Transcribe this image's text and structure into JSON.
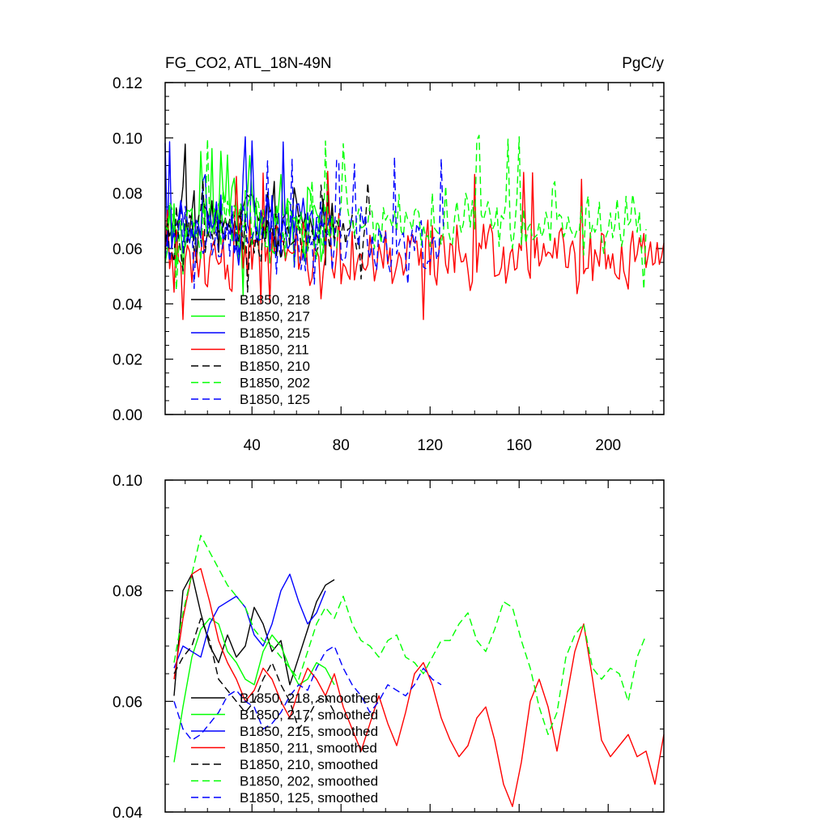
{
  "chart_data": [
    {
      "type": "line",
      "title": "FG_CO2, ATL_18N-49N",
      "units": "PgC/y",
      "xlabel": "",
      "ylabel": "",
      "xlim": [
        1,
        225
      ],
      "ylim": [
        0.0,
        0.12
      ],
      "xticks": [
        40,
        80,
        120,
        160,
        200
      ],
      "xtick_labels": [
        "40",
        "80",
        "120",
        "160",
        "200"
      ],
      "yticks": [
        0.0,
        0.02,
        0.04,
        0.06,
        0.08,
        0.1,
        0.12
      ],
      "ytick_labels": [
        "0.00",
        "0.02",
        "0.04",
        "0.06",
        "0.08",
        "0.10",
        "0.12"
      ],
      "legend_position": "lower-left",
      "series": [
        {
          "name": "B1850, 218",
          "color": "#000000",
          "dash": "solid",
          "x_start": 1,
          "x_end": 77,
          "mean": 0.07,
          "amplitude": 0.012,
          "peak": 0.101,
          "seed": 11
        },
        {
          "name": "B1850, 217",
          "color": "#00ff00",
          "dash": "solid",
          "x_start": 1,
          "x_end": 77,
          "mean": 0.07,
          "amplitude": 0.013,
          "peak": 0.097,
          "seed": 23
        },
        {
          "name": "B1850, 215",
          "color": "#0000ff",
          "dash": "solid",
          "x_start": 1,
          "x_end": 73,
          "mean": 0.068,
          "amplitude": 0.013,
          "peak": 0.101,
          "seed": 37
        },
        {
          "name": "B1850, 211",
          "color": "#ff0000",
          "dash": "solid",
          "x_start": 1,
          "x_end": 225,
          "mean": 0.058,
          "amplitude": 0.012,
          "peak": 0.088,
          "seed": 41
        },
        {
          "name": "B1850, 210",
          "color": "#000000",
          "dash": "dashed",
          "x_start": 1,
          "x_end": 93,
          "mean": 0.064,
          "amplitude": 0.011,
          "peak": 0.085,
          "seed": 53
        },
        {
          "name": "B1850, 202",
          "color": "#00ff00",
          "dash": "dashed",
          "x_start": 1,
          "x_end": 217,
          "mean": 0.069,
          "amplitude": 0.011,
          "peak": 0.101,
          "seed": 67
        },
        {
          "name": "B1850, 125",
          "color": "#0000ff",
          "dash": "dashed",
          "x_start": 1,
          "x_end": 126,
          "mean": 0.062,
          "amplitude": 0.012,
          "peak": 0.094,
          "seed": 79
        }
      ]
    },
    {
      "type": "line",
      "title": "",
      "units": "",
      "xlabel": "",
      "ylabel": "",
      "xlim": [
        1,
        225
      ],
      "ylim": [
        0.04,
        0.1
      ],
      "xticks": [
        40,
        80,
        120,
        160,
        200
      ],
      "xtick_labels": [],
      "yticks": [
        0.04,
        0.06,
        0.08,
        0.1
      ],
      "ytick_labels": [
        "0.04",
        "0.06",
        "0.08",
        "0.10"
      ],
      "legend_position": "lower-left",
      "series": [
        {
          "name": "B1850, 218, smoothed",
          "color": "#000000",
          "dash": "solid",
          "x": [
            5,
            9,
            13,
            17,
            21,
            25,
            29,
            33,
            37,
            41,
            45,
            49,
            53,
            57,
            61,
            65,
            69,
            73,
            77
          ],
          "y": [
            0.061,
            0.08,
            0.083,
            0.076,
            0.07,
            0.067,
            0.072,
            0.068,
            0.07,
            0.077,
            0.074,
            0.069,
            0.071,
            0.063,
            0.068,
            0.073,
            0.078,
            0.081,
            0.082
          ]
        },
        {
          "name": "B1850, 217, smoothed",
          "color": "#00ff00",
          "dash": "solid",
          "x": [
            5,
            9,
            13,
            17,
            21,
            25,
            29,
            33,
            37,
            41,
            45,
            49,
            53,
            57,
            61,
            65,
            69,
            73,
            77
          ],
          "y": [
            0.049,
            0.059,
            0.068,
            0.073,
            0.075,
            0.074,
            0.069,
            0.067,
            0.064,
            0.063,
            0.069,
            0.072,
            0.07,
            0.066,
            0.063,
            0.064,
            0.067,
            0.066,
            0.063
          ]
        },
        {
          "name": "B1850, 215, smoothed",
          "color": "#0000ff",
          "dash": "solid",
          "x": [
            5,
            9,
            13,
            17,
            21,
            25,
            29,
            33,
            37,
            41,
            45,
            49,
            53,
            57,
            61,
            65,
            69,
            73
          ],
          "y": [
            0.066,
            0.07,
            0.069,
            0.068,
            0.074,
            0.077,
            0.078,
            0.079,
            0.077,
            0.072,
            0.07,
            0.074,
            0.08,
            0.083,
            0.078,
            0.074,
            0.076,
            0.08
          ]
        },
        {
          "name": "B1850, 211, smoothed",
          "color": "#ff0000",
          "dash": "solid",
          "x": [
            5,
            9,
            13,
            17,
            21,
            25,
            29,
            33,
            37,
            41,
            45,
            49,
            53,
            57,
            61,
            65,
            69,
            73,
            77,
            81,
            85,
            89,
            93,
            97,
            101,
            105,
            109,
            113,
            117,
            121,
            125,
            129,
            133,
            137,
            141,
            145,
            149,
            153,
            157,
            161,
            165,
            169,
            173,
            177,
            181,
            185,
            189,
            193,
            197,
            201,
            205,
            209,
            213,
            217,
            221,
            225
          ],
          "y": [
            0.064,
            0.075,
            0.083,
            0.084,
            0.078,
            0.071,
            0.067,
            0.064,
            0.06,
            0.062,
            0.066,
            0.064,
            0.06,
            0.057,
            0.062,
            0.066,
            0.064,
            0.061,
            0.065,
            0.059,
            0.055,
            0.051,
            0.056,
            0.061,
            0.056,
            0.052,
            0.058,
            0.065,
            0.067,
            0.063,
            0.057,
            0.053,
            0.05,
            0.052,
            0.057,
            0.059,
            0.053,
            0.045,
            0.041,
            0.049,
            0.06,
            0.064,
            0.059,
            0.051,
            0.06,
            0.069,
            0.074,
            0.064,
            0.053,
            0.05,
            0.052,
            0.054,
            0.05,
            0.051,
            0.045,
            0.054
          ]
        },
        {
          "name": "B1850, 210, smoothed",
          "color": "#000000",
          "dash": "dashed",
          "x": [
            5,
            9,
            13,
            17,
            21,
            25,
            29,
            33,
            37,
            41,
            45,
            49,
            53,
            57,
            61,
            65,
            69,
            73,
            77
          ],
          "y": [
            0.065,
            0.068,
            0.07,
            0.075,
            0.071,
            0.064,
            0.062,
            0.06,
            0.058,
            0.06,
            0.064,
            0.067,
            0.063,
            0.06,
            0.055,
            0.057,
            0.06,
            0.061,
            0.058
          ]
        },
        {
          "name": "B1850, 202, smoothed",
          "color": "#00ff00",
          "dash": "dashed",
          "x": [
            5,
            9,
            13,
            17,
            21,
            25,
            29,
            33,
            37,
            41,
            45,
            49,
            53,
            57,
            61,
            65,
            69,
            73,
            77,
            81,
            85,
            89,
            93,
            97,
            101,
            105,
            109,
            113,
            117,
            121,
            125,
            129,
            133,
            137,
            141,
            145,
            149,
            153,
            157,
            161,
            165,
            169,
            173,
            177,
            181,
            185,
            189,
            193,
            197,
            201,
            205,
            209,
            213,
            217
          ],
          "y": [
            0.067,
            0.076,
            0.083,
            0.09,
            0.087,
            0.084,
            0.081,
            0.079,
            0.077,
            0.073,
            0.071,
            0.07,
            0.068,
            0.066,
            0.064,
            0.069,
            0.074,
            0.077,
            0.075,
            0.079,
            0.074,
            0.071,
            0.07,
            0.068,
            0.071,
            0.072,
            0.068,
            0.067,
            0.065,
            0.068,
            0.071,
            0.071,
            0.074,
            0.076,
            0.071,
            0.069,
            0.073,
            0.078,
            0.077,
            0.071,
            0.066,
            0.059,
            0.054,
            0.058,
            0.068,
            0.072,
            0.074,
            0.066,
            0.064,
            0.066,
            0.065,
            0.06,
            0.068,
            0.072
          ]
        },
        {
          "name": "B1850, 125, smoothed",
          "color": "#0000ff",
          "dash": "dashed",
          "x": [
            5,
            9,
            13,
            17,
            21,
            25,
            29,
            33,
            37,
            41,
            45,
            49,
            53,
            57,
            61,
            65,
            69,
            73,
            77,
            81,
            85,
            89,
            93,
            97,
            101,
            105,
            109,
            113,
            117,
            121,
            125
          ],
          "y": [
            0.06,
            0.055,
            0.053,
            0.054,
            0.056,
            0.058,
            0.061,
            0.062,
            0.06,
            0.059,
            0.055,
            0.056,
            0.058,
            0.061,
            0.063,
            0.062,
            0.066,
            0.069,
            0.07,
            0.066,
            0.063,
            0.061,
            0.058,
            0.06,
            0.063,
            0.062,
            0.061,
            0.063,
            0.066,
            0.064,
            0.063
          ]
        }
      ]
    }
  ]
}
